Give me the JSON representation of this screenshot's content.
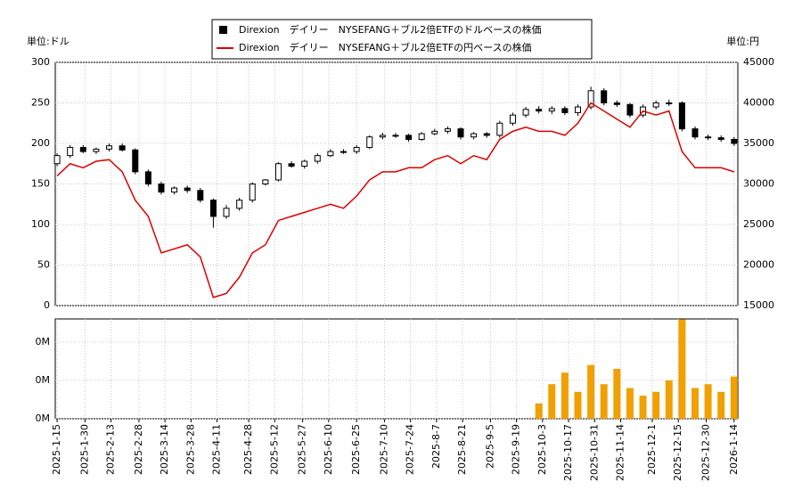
{
  "chart_data": [
    {
      "type": "candlestick",
      "y_label": "単位:ドル",
      "y2_label": "単位:円",
      "x": [
        "2025-01-15",
        "2025-01-22",
        "2025-01-29",
        "2025-02-05",
        "2025-02-12",
        "2025-02-19",
        "2025-02-26",
        "2025-03-05",
        "2025-03-12",
        "2025-03-19",
        "2025-03-26",
        "2025-04-02",
        "2025-04-09",
        "2025-04-16",
        "2025-04-23",
        "2025-04-30",
        "2025-05-07",
        "2025-05-14",
        "2025-05-21",
        "2025-05-28",
        "2025-06-04",
        "2025-06-11",
        "2025-06-18",
        "2025-06-25",
        "2025-07-02",
        "2025-07-09",
        "2025-07-16",
        "2025-07-23",
        "2025-07-30",
        "2025-08-06",
        "2025-08-13",
        "2025-08-20",
        "2025-08-27",
        "2025-09-03",
        "2025-09-10",
        "2025-09-17",
        "2025-09-24",
        "2025-10-01",
        "2025-10-08",
        "2025-10-15",
        "2025-10-22",
        "2025-10-29",
        "2025-11-05",
        "2025-11-12",
        "2025-11-19",
        "2025-11-26",
        "2025-12-03",
        "2025-12-10",
        "2025-12-17",
        "2025-12-24",
        "2025-12-31",
        "2026-01-07",
        "2026-01-14"
      ],
      "xlim": [
        "2025-01-14",
        "2026-01-16"
      ],
      "ylim": [
        0,
        300
      ],
      "yticks": [
        0,
        50,
        100,
        150,
        200,
        250,
        300
      ],
      "y2lim": [
        15000,
        45000
      ],
      "y2ticks": [
        15000,
        20000,
        25000,
        30000,
        35000,
        40000,
        45000
      ],
      "grid": true,
      "series": [
        {
          "name": "Direxion　デイリー　NYSEFANG＋ブル2倍ETFのドルベースの株価",
          "color": "#000000",
          "open": [
            175,
            185,
            195,
            190,
            193,
            197,
            192,
            165,
            150,
            140,
            145,
            142,
            130,
            110,
            120,
            130,
            150,
            155,
            175,
            172,
            178,
            185,
            190,
            190,
            195,
            208,
            210,
            210,
            205,
            212,
            215,
            218,
            208,
            212,
            210,
            225,
            235,
            242,
            240,
            243,
            238,
            245,
            265,
            250,
            248,
            235,
            245,
            250,
            250,
            218,
            208,
            207,
            205
          ],
          "high": [
            188,
            198,
            198,
            195,
            200,
            200,
            194,
            168,
            153,
            147,
            148,
            145,
            132,
            124,
            133,
            152,
            156,
            177,
            178,
            180,
            188,
            193,
            193,
            198,
            210,
            213,
            213,
            212,
            214,
            218,
            221,
            220,
            214,
            214,
            228,
            238,
            245,
            246,
            246,
            246,
            248,
            270,
            268,
            253,
            250,
            248,
            253,
            254,
            252,
            221,
            211,
            210,
            208
          ],
          "low": [
            172,
            182,
            188,
            187,
            190,
            190,
            162,
            147,
            137,
            137,
            139,
            127,
            96,
            107,
            117,
            127,
            148,
            153,
            170,
            169,
            175,
            183,
            187,
            187,
            193,
            205,
            207,
            202,
            203,
            210,
            212,
            205,
            205,
            207,
            207,
            222,
            232,
            237,
            236,
            235,
            234,
            242,
            247,
            245,
            232,
            232,
            242,
            246,
            215,
            205,
            204,
            202,
            197
          ],
          "close": [
            185,
            195,
            190,
            193,
            197,
            192,
            165,
            150,
            140,
            145,
            142,
            130,
            110,
            120,
            130,
            150,
            155,
            175,
            172,
            178,
            185,
            190,
            190,
            195,
            208,
            210,
            210,
            205,
            212,
            215,
            218,
            208,
            212,
            210,
            225,
            235,
            242,
            240,
            243,
            238,
            245,
            265,
            250,
            248,
            235,
            245,
            250,
            250,
            218,
            208,
            207,
            205,
            200
          ]
        },
        {
          "name": "Direxion　デイリー　NYSEFANG＋ブル2倍ETFの円ベースの株価",
          "color": "#dd0000",
          "axis": "y2",
          "values": [
            31000,
            32500,
            32000,
            32800,
            33000,
            31500,
            28000,
            26000,
            21500,
            22000,
            22500,
            21000,
            16000,
            16500,
            18500,
            21500,
            22500,
            25500,
            26000,
            26500,
            27000,
            27500,
            27000,
            28500,
            30500,
            31500,
            31500,
            32000,
            32000,
            33000,
            33500,
            32500,
            33500,
            33000,
            35500,
            36500,
            37000,
            36500,
            36500,
            36000,
            37500,
            40000,
            39000,
            38000,
            37000,
            39000,
            38500,
            39000,
            34000,
            32000,
            32000,
            32000,
            31500
          ]
        }
      ]
    },
    {
      "type": "bar",
      "color": "#f0a000",
      "x": [
        "2025-01-15",
        "2025-01-22",
        "2025-01-29",
        "2025-02-05",
        "2025-02-12",
        "2025-02-19",
        "2025-02-26",
        "2025-03-05",
        "2025-03-12",
        "2025-03-19",
        "2025-03-26",
        "2025-04-02",
        "2025-04-09",
        "2025-04-16",
        "2025-04-23",
        "2025-04-30",
        "2025-05-07",
        "2025-05-14",
        "2025-05-21",
        "2025-05-28",
        "2025-06-04",
        "2025-06-11",
        "2025-06-18",
        "2025-06-25",
        "2025-07-02",
        "2025-07-09",
        "2025-07-16",
        "2025-07-23",
        "2025-07-30",
        "2025-08-06",
        "2025-08-13",
        "2025-08-20",
        "2025-08-27",
        "2025-09-03",
        "2025-09-10",
        "2025-09-17",
        "2025-09-24",
        "2025-10-01",
        "2025-10-08",
        "2025-10-15",
        "2025-10-22",
        "2025-10-29",
        "2025-11-05",
        "2025-11-12",
        "2025-11-19",
        "2025-11-26",
        "2025-12-03",
        "2025-12-10",
        "2025-12-17",
        "2025-12-24",
        "2025-12-31",
        "2026-01-07",
        "2026-01-14"
      ],
      "values": [
        0,
        0,
        0,
        0,
        0,
        0,
        0,
        0,
        0,
        0,
        0,
        0,
        0,
        0,
        0,
        0,
        0,
        0,
        0,
        0,
        0,
        0,
        0,
        0,
        0,
        0,
        0,
        0,
        0,
        0,
        0,
        0,
        0,
        0,
        0,
        0,
        0,
        40000,
        90000,
        120000,
        70000,
        140000,
        90000,
        130000,
        80000,
        60000,
        70000,
        100000,
        259000,
        80000,
        90000,
        70000,
        110000
      ],
      "xlim": [
        "2025-01-14",
        "2026-01-16"
      ],
      "ylim": [
        0,
        260000
      ],
      "yticks": [
        {
          "value": 0,
          "label": "0M"
        },
        {
          "value": 100000,
          "label": "0M"
        },
        {
          "value": 200000,
          "label": "0M"
        }
      ],
      "xticks": [
        {
          "value": "2025-01-15",
          "label": "2025-1-15"
        },
        {
          "value": "2025-01-30",
          "label": "2025-1-30"
        },
        {
          "value": "2025-02-13",
          "label": "2025-2-13"
        },
        {
          "value": "2025-02-28",
          "label": "2025-2-28"
        },
        {
          "value": "2025-03-14",
          "label": "2025-3-14"
        },
        {
          "value": "2025-03-28",
          "label": "2025-3-28"
        },
        {
          "value": "2025-04-11",
          "label": "2025-4-11"
        },
        {
          "value": "2025-04-28",
          "label": "2025-4-28"
        },
        {
          "value": "2025-05-12",
          "label": "2025-5-12"
        },
        {
          "value": "2025-05-27",
          "label": "2025-5-27"
        },
        {
          "value": "2025-06-10",
          "label": "2025-6-10"
        },
        {
          "value": "2025-06-25",
          "label": "2025-6-25"
        },
        {
          "value": "2025-07-10",
          "label": "2025-7-10"
        },
        {
          "value": "2025-07-24",
          "label": "2025-7-24"
        },
        {
          "value": "2025-08-07",
          "label": "2025-8-7"
        },
        {
          "value": "2025-08-21",
          "label": "2025-8-21"
        },
        {
          "value": "2025-09-05",
          "label": "2025-9-5"
        },
        {
          "value": "2025-09-19",
          "label": "2025-9-19"
        },
        {
          "value": "2025-10-03",
          "label": "2025-10-3"
        },
        {
          "value": "2025-10-17",
          "label": "2025-10-17"
        },
        {
          "value": "2025-10-31",
          "label": "2025-10-31"
        },
        {
          "value": "2025-11-14",
          "label": "2025-11-14"
        },
        {
          "value": "2025-12-01",
          "label": "2025-12-1"
        },
        {
          "value": "2025-12-15",
          "label": "2025-12-15"
        },
        {
          "value": "2025-12-30",
          "label": "2025-12-30"
        },
        {
          "value": "2026-01-14",
          "label": "2026-1-14"
        }
      ]
    }
  ]
}
